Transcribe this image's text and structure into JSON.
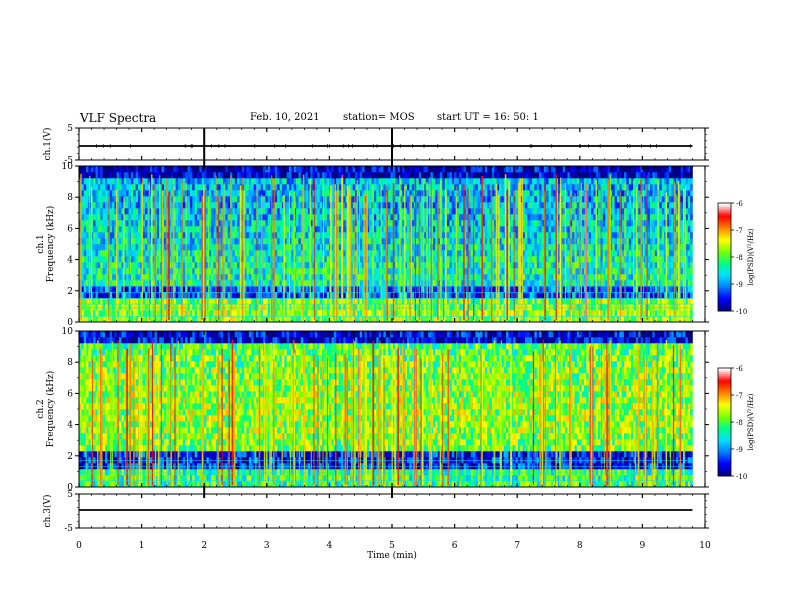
{
  "header": {
    "title": "VLF Spectra",
    "date": "Feb. 10, 2021",
    "station": "station= MOS",
    "start": "start  UT =  16: 50: 1"
  },
  "chart_data": [
    {
      "type": "line",
      "panel": "ch1-waveform",
      "ylabel": "ch.1(V)",
      "ylim": [
        -5,
        5
      ],
      "yticks": [
        5,
        -5
      ],
      "xlim": [
        0,
        10
      ],
      "series": [
        {
          "x": [
            0,
            9.8
          ],
          "values": [
            0,
            0
          ]
        }
      ]
    },
    {
      "type": "heatmap",
      "panel": "ch1-spectrogram",
      "ylabel": "ch.1\nFrequency (kHz)",
      "ylim": [
        0,
        10
      ],
      "yticks": [
        0,
        2,
        4,
        6,
        8,
        10
      ],
      "xlim": [
        0,
        10
      ],
      "data_x_extent": [
        0,
        9.8
      ],
      "colorbar": {
        "label": "log(PSD)(V²/Hz)",
        "range": [
          -10,
          -6
        ],
        "ticks": [
          -6,
          -7,
          -8,
          -9,
          -10
        ]
      }
    },
    {
      "type": "heatmap",
      "panel": "ch2-spectrogram",
      "ylabel": "ch.2\nFrequency (kHz)",
      "ylim": [
        0,
        10
      ],
      "yticks": [
        0,
        2,
        4,
        6,
        8,
        10
      ],
      "xlim": [
        0,
        10
      ],
      "data_x_extent": [
        0,
        9.8
      ],
      "colorbar": {
        "label": "log(PSD)(V²/Hz)",
        "range": [
          -10,
          -6
        ],
        "ticks": [
          -6,
          -7,
          -8,
          -9,
          -10
        ]
      }
    },
    {
      "type": "line",
      "panel": "ch3-waveform",
      "ylabel": "ch.3(V)",
      "ylim": [
        -5,
        5
      ],
      "yticks": [
        5,
        -5
      ],
      "xlim": [
        0,
        10
      ],
      "series": [
        {
          "x": [
            0,
            9.8
          ],
          "values": [
            0,
            0
          ]
        }
      ]
    }
  ],
  "xaxis": {
    "label": "Time (min)",
    "ticks": [
      0,
      1,
      2,
      3,
      4,
      5,
      6,
      7,
      8,
      9,
      10
    ]
  },
  "colormap": [
    "#000080",
    "#0000ff",
    "#0080ff",
    "#00e0ff",
    "#00ff80",
    "#80ff00",
    "#ffff00",
    "#ff8000",
    "#ff0000",
    "#ffffff"
  ]
}
